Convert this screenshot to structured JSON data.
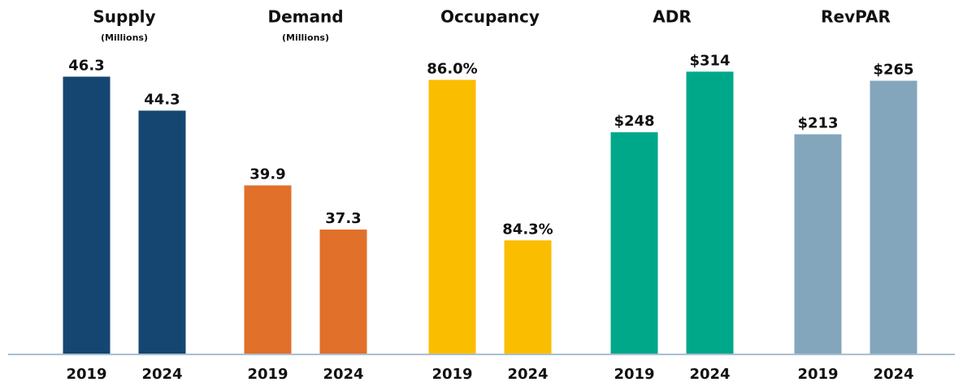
{
  "chart_data": [
    {
      "type": "bar",
      "title": "Supply",
      "subtitle": "(Millions)",
      "categories": [
        "2019",
        "2024"
      ],
      "values": [
        46.3,
        44.3
      ],
      "color": "#154672",
      "ylim": [
        30,
        50
      ]
    },
    {
      "type": "bar",
      "title": "Demand",
      "subtitle": "(Millions)",
      "categories": [
        "2019",
        "2024"
      ],
      "values": [
        39.9,
        37.3
      ],
      "color": "#e0702a",
      "ylim": [
        30,
        50
      ]
    },
    {
      "type": "bar",
      "title": "Occupancy",
      "categories": [
        "2019",
        "2024"
      ],
      "values": [
        86.0,
        84.3
      ],
      "value_labels": [
        "86.0%",
        "84.3%"
      ],
      "color": "#fbbd00",
      "ylim": [
        83.1,
        86.7
      ]
    },
    {
      "type": "bar",
      "title": "ADR",
      "categories": [
        "2019",
        "2024"
      ],
      "values": [
        248,
        314
      ],
      "value_labels": [
        "$248",
        "$314"
      ],
      "color": "#00a88a",
      "ylim": [
        7,
        377
      ]
    },
    {
      "type": "bar",
      "title": "RevPAR",
      "categories": [
        "2019",
        "2024"
      ],
      "values": [
        213,
        265
      ],
      "value_labels": [
        "$213",
        "$265"
      ],
      "color": "#84a6bd",
      "ylim": [
        0,
        330
      ]
    }
  ]
}
